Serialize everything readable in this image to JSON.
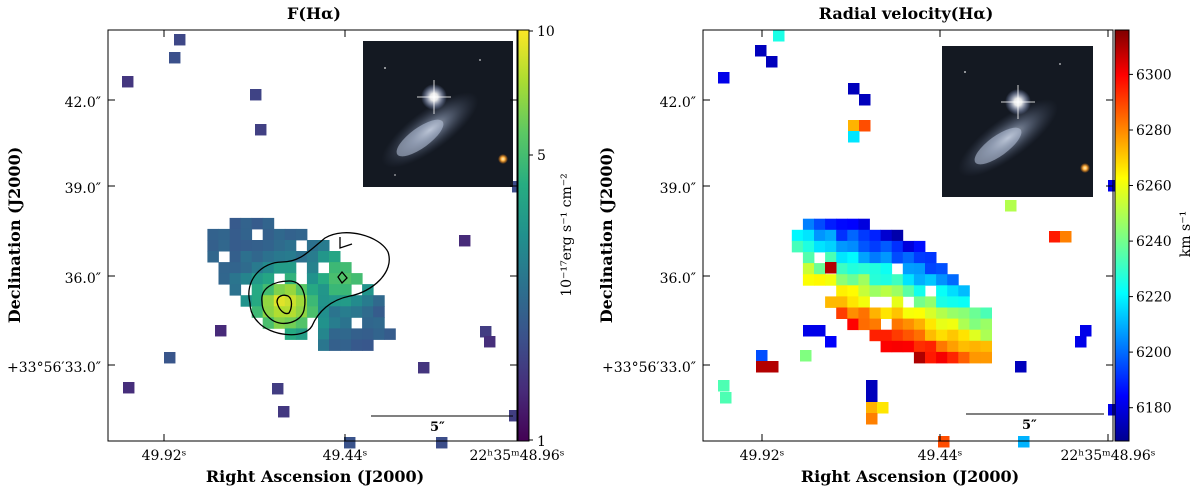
{
  "chart_data": [
    {
      "type": "heatmap",
      "title": "F(Hα)",
      "xlabel": "Right Ascension (J2000)",
      "ylabel": "Declination (J2000)",
      "x_ticks": [
        "49.92ˢ",
        "49.44ˢ",
        "22ʰ35ᵐ48.96ˢ"
      ],
      "y_ticks": [
        "42.0″",
        "39.0″",
        "36.0″",
        "+33°56′33.0″"
      ],
      "colorbar": {
        "label": "10⁻¹⁷erg s⁻¹ cm⁻²",
        "scale": "log",
        "ticks": [
          "10",
          "5",
          "1"
        ],
        "range": [
          1,
          10
        ],
        "colormap": "viridis"
      },
      "scale_bar_label": "5″",
      "contours": "3 levels",
      "inset": "galaxy image"
    },
    {
      "type": "heatmap",
      "title": "Radial velocity(Hα)",
      "xlabel": "Right Ascension (J2000)",
      "ylabel": "Declination (J2000)",
      "x_ticks": [
        "49.92ˢ",
        "49.44ˢ",
        "22ʰ35ᵐ48.96ˢ"
      ],
      "y_ticks": [
        "42.0″",
        "39.0″",
        "36.0″",
        "+33°56′33.0″"
      ],
      "colorbar": {
        "label": "km s⁻¹",
        "scale": "linear",
        "ticks": [
          "6300",
          "6280",
          "6260",
          "6240",
          "6220",
          "6200",
          "6180"
        ],
        "range": [
          6168,
          6316
        ],
        "colormap": "jet"
      },
      "scale_bar_label": "5″",
      "inset": "galaxy image"
    }
  ],
  "colors": {
    "viridis": [
      "#440154",
      "#472c7a",
      "#3b518b",
      "#2c718e",
      "#21908d",
      "#27ad81",
      "#5cc863",
      "#aadc32",
      "#fde725"
    ],
    "jet": [
      "#00008f",
      "#0000ff",
      "#0080ff",
      "#00ffff",
      "#80ff80",
      "#ffff00",
      "#ff8000",
      "#ff0000",
      "#800000"
    ]
  }
}
